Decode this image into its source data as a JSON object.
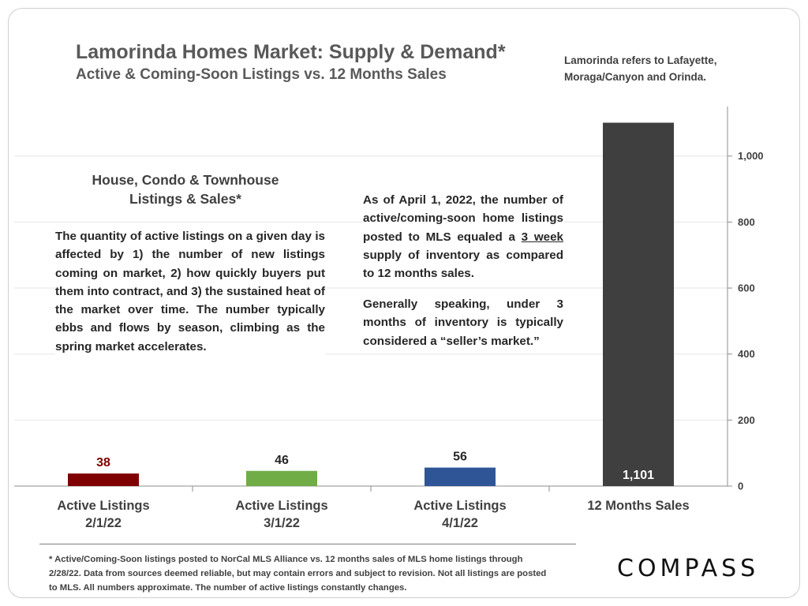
{
  "header": {
    "title": "Lamorinda Homes Market: Supply & Demand*",
    "subtitle": "Active & Coming-Soon Listings vs. 12 Months Sales",
    "note": "Lamorinda refers to Lafayette, Moraga/Canyon and Orinda."
  },
  "body": {
    "heading_line1": "House, Condo & Townhouse",
    "heading_line2": "Listings & Sales*",
    "paragraph1": "The quantity of active listings on a given day is affected by 1) the number of new listings coming on market, 2) how quickly buyers put them into contract, and 3) the sustained heat of the market over time. The number typically ebbs and flows by season, climbing as the spring market accelerates.",
    "paragraph2_before": "As of April 1, 2022, the number of active/coming-soon home listings posted to MLS equaled a ",
    "paragraph2_underlined": "3 week",
    "paragraph2_after": " supply of inventory as compared to 12 months sales.",
    "paragraph3": "Generally speaking, under 3 months of inventory is typically considered a “seller’s market.”"
  },
  "footer": {
    "footnote": "* Active/Coming-Soon listings posted to NorCal MLS Alliance vs. 12 months sales of MLS home listings through 2/28/22.  Data from sources deemed reliable, but may contain errors and subject to revision.  Not all listings are posted to MLS. All numbers approximate. The number of active listings constantly changes.",
    "logo": "COMPASS"
  },
  "chart_data": {
    "type": "bar",
    "title": "Lamorinda Homes Market: Supply & Demand*",
    "subtitle": "Active & Coming-Soon Listings vs. 12 Months Sales",
    "categories": [
      [
        "Active Listings",
        "2/1/22"
      ],
      [
        "Active Listings",
        "3/1/22"
      ],
      [
        "Active Listings",
        "4/1/22"
      ],
      [
        "12 Months Sales"
      ]
    ],
    "values": [
      38,
      46,
      56,
      1101
    ],
    "value_labels": [
      "38",
      "46",
      "56",
      "1,101"
    ],
    "colors": [
      "#7f0000",
      "#70ad47",
      "#2f5597",
      "#3f3f3f"
    ],
    "label_colors": [
      "#7f0000",
      "#262626",
      "#262626",
      "#ffffff"
    ],
    "ylim": [
      0,
      1150
    ],
    "yticks": [
      0,
      200,
      400,
      600,
      800,
      1000
    ],
    "ytick_labels": [
      "0",
      "200",
      "400",
      "600",
      "800",
      "1,000"
    ],
    "yaxis_side": "right",
    "grid": true,
    "xlabel": "",
    "ylabel": ""
  }
}
